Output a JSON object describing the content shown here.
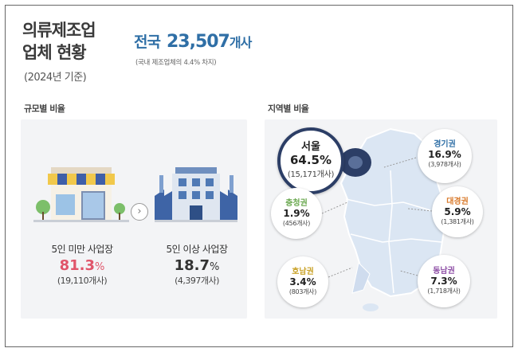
{
  "header": {
    "title_line1": "의류제조업",
    "title_line2": "업체 현황",
    "subtitle": "(2024년 기준)",
    "headline_label": "전국",
    "headline_value": "23,507",
    "headline_unit": "개사",
    "note": "(국내 제조업체의 4.4% 차지)"
  },
  "size_section": {
    "label": "규모별 비율",
    "items": [
      {
        "name": "5인 미만 사업장",
        "percent": "81.3",
        "percent_unit": "%",
        "count": "(19,110개사)",
        "color": "#e0556a"
      },
      {
        "name": "5인 이상 사업장",
        "percent": "18.7",
        "percent_unit": "%",
        "count": "(4,397개사)",
        "color": "#333333"
      }
    ],
    "arrow": "›"
  },
  "region_section": {
    "label": "지역별 비율",
    "regions": [
      {
        "name": "서울",
        "percent": "64.5%",
        "count": "(15,171개사)",
        "color": "#222222"
      },
      {
        "name": "경기권",
        "percent": "16.9%",
        "count": "(3,978개사)",
        "color": "#2f6fa6"
      },
      {
        "name": "충청권",
        "percent": "1.9%",
        "count": "(456개사)",
        "color": "#6aa84f"
      },
      {
        "name": "대경권",
        "percent": "5.9%",
        "count": "(1,381개사)",
        "color": "#d97a2b"
      },
      {
        "name": "호남권",
        "percent": "3.4%",
        "count": "(803개사)",
        "color": "#c9a227"
      },
      {
        "name": "동남권",
        "percent": "7.3%",
        "count": "(1,718개사)",
        "color": "#8e4fa6"
      }
    ]
  },
  "colors": {
    "accent": "#2f6fa6",
    "map_fill": "#dbe6f3",
    "seoul_fill": "#2c3e66"
  }
}
